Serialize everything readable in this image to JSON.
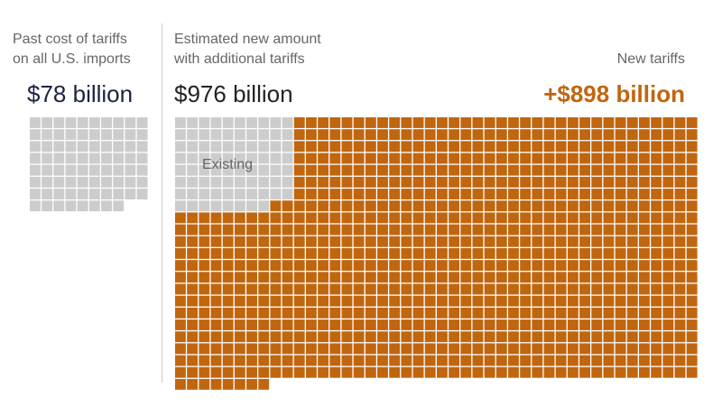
{
  "past": {
    "label_lines": [
      "Past cost of tariffs",
      "on all U.S. imports"
    ],
    "value_text": "$78 billion",
    "value_color": "#1a2340"
  },
  "new_total": {
    "label_lines": [
      "Estimated new amount",
      "with additional tariffs"
    ],
    "value_text": "$976 billion",
    "value_color": "#222222"
  },
  "new_tariffs": {
    "label": "New tariffs",
    "value_text": "+$898 billion",
    "value_color": "#c0660f"
  },
  "existing_label": "Existing",
  "colors": {
    "existing": "#cccccc",
    "new": "#c0660f",
    "grid": "#ffffff"
  },
  "chart_data": {
    "type": "waffle",
    "unit": "$1 billion per square",
    "series": [
      {
        "name": "Past cost of tariffs on all U.S. imports",
        "value": 78
      },
      {
        "name": "Existing",
        "value": 78
      },
      {
        "name": "New tariffs",
        "value": 898
      }
    ],
    "total": 976
  }
}
